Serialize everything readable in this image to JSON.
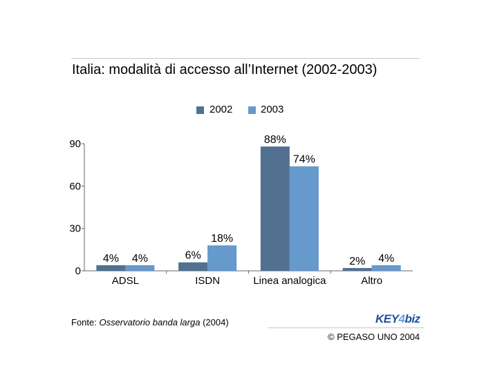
{
  "chart_data": {
    "type": "bar",
    "title": "Italia: modalità di accesso all’Internet (2002-2003)",
    "categories": [
      "ADSL",
      "ISDN",
      "Linea analogica",
      "Altro"
    ],
    "series": [
      {
        "name": "2002",
        "values": [
          4,
          6,
          88,
          2
        ],
        "labels": [
          "4%",
          "6%",
          "88%",
          "2%"
        ],
        "color": "#52708f"
      },
      {
        "name": "2003",
        "values": [
          4,
          18,
          74,
          4
        ],
        "labels": [
          "4%",
          "18%",
          "74%",
          "4%"
        ],
        "color": "#6699cc"
      }
    ],
    "ylim": [
      0,
      90
    ],
    "yticks": [
      0,
      30,
      60,
      90
    ],
    "xlabel": "",
    "ylabel": "",
    "grid": false,
    "legend_position": "top-center"
  },
  "footer": {
    "source_prefix": "Fonte: ",
    "source_name": "Osservatorio banda larga",
    "source_suffix": " (2004)",
    "logo_key": "KEY",
    "logo_num": "4",
    "logo_biz": "biz",
    "copyright": "© PEGASO UNO 2004"
  },
  "colors": {
    "logo_blue": "#1f4e9c",
    "logo_light": "#6fa0d8"
  }
}
